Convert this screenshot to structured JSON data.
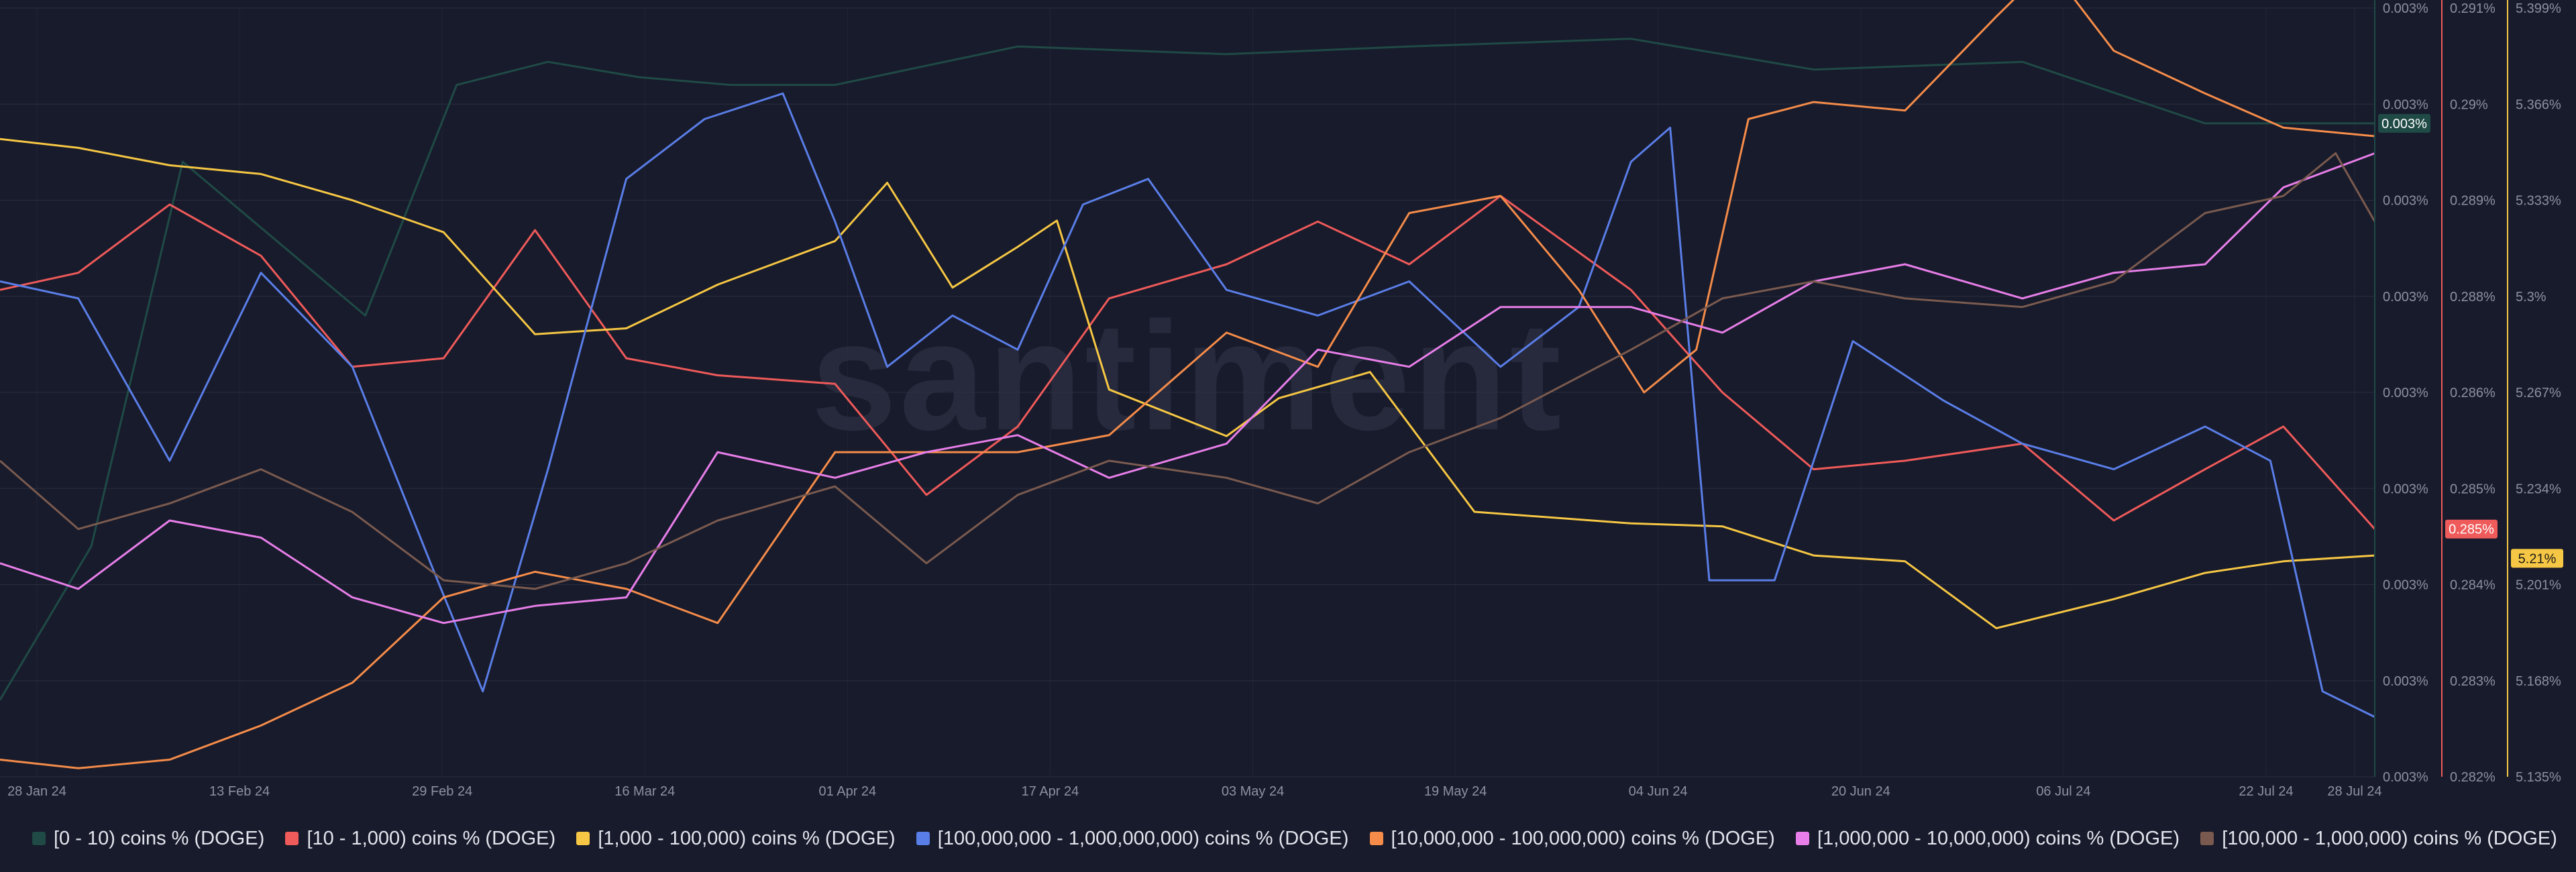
{
  "watermark": "santiment",
  "colors": {
    "background": "#181b2b",
    "grid": "#2a2e40",
    "axis_text": "#8c90a3"
  },
  "chart_data": {
    "type": "line",
    "x_ticks": [
      "28 Jan 24",
      "13 Feb 24",
      "29 Feb 24",
      "16 Mar 24",
      "01 Apr 24",
      "17 Apr 24",
      "03 May 24",
      "19 May 24",
      "04 Jun 24",
      "20 Jun 24",
      "06 Jul 24",
      "22 Jul 24",
      "28 Jul 24"
    ],
    "xlim": [
      "2024-01-28",
      "2024-07-28"
    ],
    "grid": true,
    "legend_position": "bottom",
    "axes": [
      {
        "id": "axis-0-10",
        "color": "#1f4a46",
        "ylim": [
          0.00295,
          0.00305
        ],
        "ticks": [
          "0.003%",
          "0.003%",
          "0.003%",
          "0.003%",
          "0.003%",
          "0.003%",
          "0.003%",
          "0.003%",
          "0.003%"
        ],
        "badge": "0.003%",
        "badge_value": 0.003035,
        "badge_bg": "#1f4a46",
        "badge_fg": "#ffffff"
      },
      {
        "id": "axis-10-1000",
        "color": "#ef5a5a",
        "ylim": [
          0.282,
          0.291
        ],
        "ticks": [
          "0.291%",
          "0.29%",
          "0.289%",
          "0.288%",
          "0.286%",
          "0.285%",
          "0.284%",
          "0.283%",
          "0.282%"
        ],
        "badge": "0.285%",
        "badge_value": 0.2849,
        "badge_bg": "#ef5a5a",
        "badge_fg": "#ffffff"
      },
      {
        "id": "axis-1000-100000",
        "color": "#f6c744",
        "ylim": [
          5.135,
          5.399
        ],
        "ticks": [
          "5.399%",
          "5.366%",
          "5.333%",
          "5.3%",
          "5.267%",
          "5.234%",
          "5.201%",
          "5.168%",
          "5.135%"
        ],
        "badge": "5.21%",
        "badge_value": 5.21,
        "badge_bg": "#f6c744",
        "badge_fg": "#1a1a1a"
      }
    ],
    "series": [
      {
        "name": "[0 - 10) coins % (DOGE)",
        "color": "#1f4a46",
        "x": [
          "2024-01-28",
          "2024-02-04",
          "2024-02-11",
          "2024-02-18",
          "2024-02-25",
          "2024-03-03",
          "2024-03-10",
          "2024-03-17",
          "2024-03-24",
          "2024-04-01",
          "2024-04-15",
          "2024-05-01",
          "2024-05-15",
          "2024-06-01",
          "2024-06-15",
          "2024-07-01",
          "2024-07-15",
          "2024-07-28"
        ],
        "y": [
          0.00296,
          0.00298,
          0.00303,
          0.00302,
          0.00301,
          0.00304,
          0.003043,
          0.003041,
          0.00304,
          0.00304,
          0.003045,
          0.003044,
          0.003045,
          0.003046,
          0.003042,
          0.003043,
          0.003035,
          0.003035
        ]
      },
      {
        "name": "[10 - 1,000) coins % (DOGE)",
        "color": "#ef5a5a",
        "x": [
          "2024-01-28",
          "2024-02-03",
          "2024-02-10",
          "2024-02-17",
          "2024-02-24",
          "2024-03-02",
          "2024-03-09",
          "2024-03-16",
          "2024-03-23",
          "2024-04-01",
          "2024-04-08",
          "2024-04-15",
          "2024-04-22",
          "2024-05-01",
          "2024-05-08",
          "2024-05-15",
          "2024-05-22",
          "2024-06-01",
          "2024-06-08",
          "2024-06-15",
          "2024-06-22",
          "2024-07-01",
          "2024-07-08",
          "2024-07-15",
          "2024-07-21",
          "2024-07-28"
        ],
        "y": [
          0.2877,
          0.2879,
          0.2887,
          0.2881,
          0.2868,
          0.2869,
          0.2884,
          0.2869,
          0.2867,
          0.2866,
          0.2853,
          0.2861,
          0.2876,
          0.288,
          0.2885,
          0.288,
          0.2888,
          0.2877,
          0.2865,
          0.2856,
          0.2857,
          0.2859,
          0.285,
          0.2856,
          0.2861,
          0.2849
        ]
      },
      {
        "name": "[1,000 - 100,000) coins % (DOGE)",
        "color": "#f6c744",
        "x": [
          "2024-01-28",
          "2024-02-03",
          "2024-02-10",
          "2024-02-17",
          "2024-02-24",
          "2024-03-02",
          "2024-03-09",
          "2024-03-16",
          "2024-03-23",
          "2024-04-01",
          "2024-04-05",
          "2024-04-10",
          "2024-04-15",
          "2024-04-18",
          "2024-04-22",
          "2024-05-01",
          "2024-05-05",
          "2024-05-12",
          "2024-05-20",
          "2024-06-01",
          "2024-06-08",
          "2024-06-15",
          "2024-06-22",
          "2024-06-29",
          "2024-07-08",
          "2024-07-15",
          "2024-07-21",
          "2024-07-28"
        ],
        "y": [
          5.354,
          5.351,
          5.345,
          5.342,
          5.333,
          5.322,
          5.287,
          5.289,
          5.304,
          5.319,
          5.339,
          5.303,
          5.317,
          5.326,
          5.268,
          5.252,
          5.265,
          5.274,
          5.226,
          5.222,
          5.221,
          5.211,
          5.209,
          5.186,
          5.196,
          5.205,
          5.209,
          5.211
        ]
      },
      {
        "name": "[100,000,000 - 1,000,000,000) coins % (DOGE)",
        "color": "#5a7ee8",
        "x": [
          "2024-01-28",
          "2024-02-03",
          "2024-02-10",
          "2024-02-17",
          "2024-02-24",
          "2024-03-01",
          "2024-03-05",
          "2024-03-10",
          "2024-03-16",
          "2024-03-22",
          "2024-03-28",
          "2024-04-01",
          "2024-04-05",
          "2024-04-10",
          "2024-04-15",
          "2024-04-20",
          "2024-04-25",
          "2024-05-01",
          "2024-05-08",
          "2024-05-15",
          "2024-05-22",
          "2024-05-28",
          "2024-06-01",
          "2024-06-04",
          "2024-06-07",
          "2024-06-12",
          "2024-06-18",
          "2024-06-25",
          "2024-07-01",
          "2024-07-08",
          "2024-07-15",
          "2024-07-20",
          "2024-07-24",
          "2024-07-28"
        ],
        "y": [
          0.2878,
          0.2876,
          0.2857,
          0.2879,
          0.2868,
          0.2845,
          0.283,
          0.2856,
          0.289,
          0.2897,
          0.29,
          0.2885,
          0.2868,
          0.2874,
          0.287,
          0.2887,
          0.289,
          0.2877,
          0.2874,
          0.2878,
          0.2868,
          0.2875,
          0.2892,
          0.2896,
          0.2843,
          0.2843,
          0.2871,
          0.2864,
          0.2859,
          0.2856,
          0.2861,
          0.2857,
          0.283,
          0.2827
        ]
      },
      {
        "name": "[10,000,000 - 100,000,000) coins % (DOGE)",
        "color": "#f58c4a",
        "x": [
          "2024-01-28",
          "2024-02-03",
          "2024-02-10",
          "2024-02-17",
          "2024-02-24",
          "2024-03-02",
          "2024-03-09",
          "2024-03-16",
          "2024-03-23",
          "2024-04-01",
          "2024-04-08",
          "2024-04-15",
          "2024-04-22",
          "2024-05-01",
          "2024-05-08",
          "2024-05-15",
          "2024-05-22",
          "2024-05-28",
          "2024-06-02",
          "2024-06-06",
          "2024-06-10",
          "2024-06-15",
          "2024-06-22",
          "2024-06-29",
          "2024-07-03",
          "2024-07-08",
          "2024-07-15",
          "2024-07-21",
          "2024-07-28"
        ],
        "y": [
          0.2822,
          0.2821,
          0.2822,
          0.2826,
          0.2831,
          0.2841,
          0.2844,
          0.2842,
          0.2838,
          0.2858,
          0.2858,
          0.2858,
          0.286,
          0.2872,
          0.2868,
          0.2886,
          0.2888,
          0.2877,
          0.2865,
          0.287,
          0.2897,
          0.2899,
          0.2898,
          0.2909,
          0.2915,
          0.2905,
          0.29,
          0.2896,
          0.2895
        ]
      },
      {
        "name": "[1,000,000 - 10,000,000) coins % (DOGE)",
        "color": "#e77ee9",
        "x": [
          "2024-01-28",
          "2024-02-03",
          "2024-02-10",
          "2024-02-17",
          "2024-02-24",
          "2024-03-02",
          "2024-03-09",
          "2024-03-16",
          "2024-03-23",
          "2024-04-01",
          "2024-04-08",
          "2024-04-15",
          "2024-04-22",
          "2024-05-01",
          "2024-05-08",
          "2024-05-15",
          "2024-05-22",
          "2024-06-01",
          "2024-06-08",
          "2024-06-15",
          "2024-06-22",
          "2024-07-01",
          "2024-07-08",
          "2024-07-15",
          "2024-07-21",
          "2024-07-28"
        ],
        "y": [
          0.2845,
          0.2842,
          0.285,
          0.2848,
          0.2841,
          0.2838,
          0.284,
          0.2841,
          0.2858,
          0.2855,
          0.2858,
          0.286,
          0.2855,
          0.2859,
          0.287,
          0.2868,
          0.2875,
          0.2875,
          0.2872,
          0.2878,
          0.288,
          0.2876,
          0.2879,
          0.288,
          0.2889,
          0.2893
        ]
      },
      {
        "name": "[100,000  - 1,000,000) coins % (DOGE)",
        "color": "#7a5a4f",
        "x": [
          "2024-01-28",
          "2024-02-03",
          "2024-02-10",
          "2024-02-17",
          "2024-02-24",
          "2024-03-02",
          "2024-03-09",
          "2024-03-16",
          "2024-03-23",
          "2024-04-01",
          "2024-04-08",
          "2024-04-15",
          "2024-04-22",
          "2024-05-01",
          "2024-05-08",
          "2024-05-15",
          "2024-05-22",
          "2024-06-01",
          "2024-06-08",
          "2024-06-15",
          "2024-06-22",
          "2024-07-01",
          "2024-07-08",
          "2024-07-15",
          "2024-07-21",
          "2024-07-25",
          "2024-07-28"
        ],
        "y": [
          0.2857,
          0.2849,
          0.2852,
          0.2856,
          0.2851,
          0.2843,
          0.2842,
          0.2845,
          0.285,
          0.2854,
          0.2845,
          0.2853,
          0.2857,
          0.2855,
          0.2852,
          0.2858,
          0.2862,
          0.287,
          0.2876,
          0.2878,
          0.2876,
          0.2875,
          0.2878,
          0.2886,
          0.2888,
          0.2893,
          0.2885
        ]
      }
    ]
  },
  "legend": [
    {
      "label": "[0 - 10) coins % (DOGE)",
      "color": "#1f4a46"
    },
    {
      "label": "[10 - 1,000) coins % (DOGE)",
      "color": "#ef5a5a"
    },
    {
      "label": "[1,000 - 100,000) coins % (DOGE)",
      "color": "#f6c744"
    },
    {
      "label": "[100,000,000 - 1,000,000,000) coins % (DOGE)",
      "color": "#5a7ee8"
    },
    {
      "label": "[10,000,000 - 100,000,000) coins % (DOGE)",
      "color": "#f58c4a"
    },
    {
      "label": "[1,000,000 - 10,000,000) coins % (DOGE)",
      "color": "#e77ee9"
    },
    {
      "label": "[100,000  - 1,000,000) coins % (DOGE)",
      "color": "#7a5a4f"
    }
  ]
}
